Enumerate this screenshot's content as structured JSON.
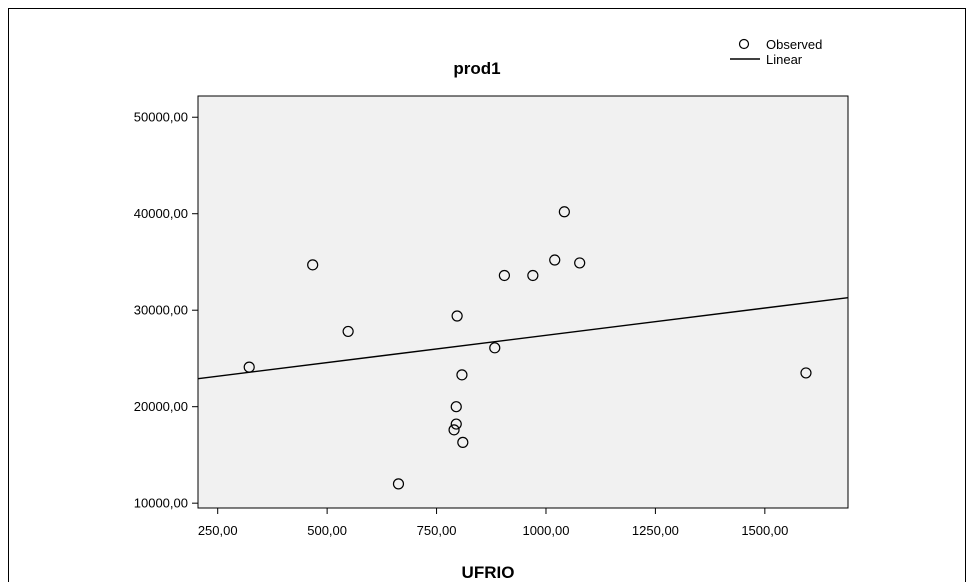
{
  "chart_data": {
    "type": "scatter",
    "title": "prod1",
    "xlabel": "UFRIO",
    "ylabel": "",
    "xlim": [
      205,
      1690
    ],
    "ylim": [
      9500,
      52200
    ],
    "x_ticks": [
      250,
      500,
      750,
      1000,
      1250,
      1500
    ],
    "x_tick_labels": [
      "250,00",
      "500,00",
      "750,00",
      "1000,00",
      "1250,00",
      "1500,00"
    ],
    "y_ticks": [
      10000,
      20000,
      30000,
      40000,
      50000
    ],
    "y_tick_labels": [
      "10000,00",
      "20000,00",
      "30000,00",
      "40000,00",
      "50000,00"
    ],
    "series": [
      {
        "name": "Observed",
        "kind": "points",
        "x": [
          322,
          467,
          548,
          663,
          790,
          795,
          795,
          797,
          808,
          810,
          883,
          905,
          970,
          1020,
          1042,
          1077,
          1594
        ],
        "y": [
          24100,
          34700,
          27800,
          12000,
          17600,
          18200,
          20000,
          29400,
          23300,
          16300,
          26100,
          33600,
          33600,
          35200,
          40200,
          34900,
          23500
        ]
      },
      {
        "name": "Linear",
        "kind": "line",
        "x": [
          205,
          1690
        ],
        "y": [
          22900,
          31300
        ]
      }
    ],
    "legend": {
      "position": "top-right",
      "entries": [
        "Observed",
        "Linear"
      ]
    },
    "grid": false,
    "colors": {
      "plot_background": "#f1f1f1",
      "marks": "#000000"
    }
  }
}
